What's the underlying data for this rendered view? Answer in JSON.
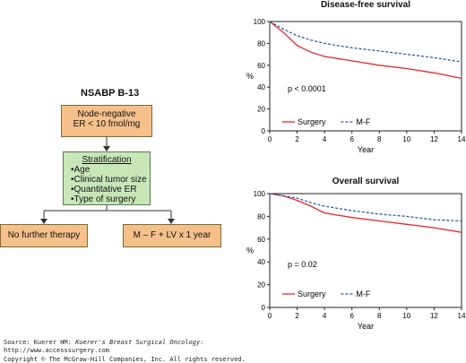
{
  "flowchart": {
    "trial_title": "NSABP B-13",
    "eligibility_line1": "Node-negative",
    "eligibility_line2": "ER < 10 fmol/mg",
    "stratification_heading": "Stratification",
    "stratification_items": [
      "Age",
      "Clinical tumor size",
      "Quantitative ER",
      "Type of surgery"
    ],
    "arm_left": "No further therapy",
    "arm_right": "M – F + LV x 1 year",
    "colors": {
      "box_fill": "#f6c08a",
      "strat_fill": "#c9e6b9",
      "line": "#333333"
    }
  },
  "footer": {
    "source_prefix": "Source: Kuerer HM: ",
    "source_title": "Kuerer's Breast Surgical Oncology",
    "source_suffix": ":",
    "url": "http://www.accesssurgery.com",
    "copyright": "Copyright © The McGraw-Hill Companies, Inc. All rights reserved."
  },
  "chart_data": [
    {
      "type": "line",
      "title": "Disease-free survival",
      "xlabel": "Year",
      "ylabel": "%",
      "xlim": [
        0,
        14
      ],
      "ylim": [
        0,
        100
      ],
      "xticks": [
        0,
        2,
        4,
        6,
        8,
        10,
        12,
        14
      ],
      "yticks": [
        0,
        20,
        40,
        60,
        80,
        100
      ],
      "annotation": "p < 0.0001",
      "legend_position": "bottom-left",
      "series": [
        {
          "name": "Surgery",
          "color": "#e8252b",
          "style": "solid",
          "x": [
            0,
            1,
            2,
            3,
            4,
            6,
            8,
            10,
            12,
            14
          ],
          "y": [
            100,
            90,
            78,
            72,
            68,
            64,
            60,
            57,
            53,
            48
          ]
        },
        {
          "name": "M-F",
          "color": "#2b5aa8",
          "style": "dashed",
          "x": [
            0,
            1,
            2,
            3,
            4,
            6,
            8,
            10,
            12,
            14
          ],
          "y": [
            100,
            93,
            87,
            83,
            80,
            76,
            73,
            70,
            67,
            63
          ]
        }
      ]
    },
    {
      "type": "line",
      "title": "Overall survival",
      "xlabel": "Year",
      "ylabel": "%",
      "xlim": [
        0,
        14
      ],
      "ylim": [
        0,
        100
      ],
      "xticks": [
        0,
        2,
        4,
        6,
        8,
        10,
        12,
        14
      ],
      "yticks": [
        0,
        20,
        40,
        60,
        80,
        100
      ],
      "annotation": "p = 0.02",
      "legend_position": "bottom-left",
      "series": [
        {
          "name": "Surgery",
          "color": "#e8252b",
          "style": "solid",
          "x": [
            0,
            1,
            2,
            3,
            4,
            6,
            8,
            10,
            12,
            14
          ],
          "y": [
            100,
            98,
            94,
            89,
            83,
            79,
            76,
            73,
            70,
            66
          ]
        },
        {
          "name": "M-F",
          "color": "#2b5aa8",
          "style": "dashed",
          "x": [
            0,
            1,
            2,
            3,
            4,
            6,
            8,
            10,
            12,
            14
          ],
          "y": [
            100,
            98,
            96,
            92,
            89,
            85,
            82,
            80,
            77,
            76
          ]
        }
      ]
    }
  ]
}
